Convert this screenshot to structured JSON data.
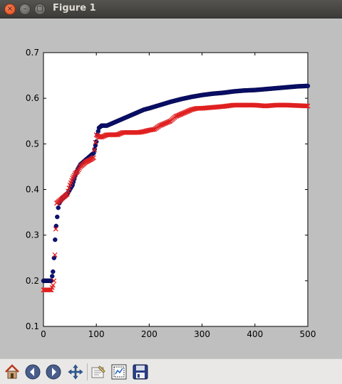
{
  "window": {
    "title": "Figure 1",
    "close_glyph": "×",
    "min_glyph": "–",
    "max_glyph": "□"
  },
  "toolbar": {
    "buttons": [
      {
        "icon": "home-icon",
        "tooltip": "Reset original view"
      },
      {
        "icon": "back-icon",
        "tooltip": "Back to previous view"
      },
      {
        "icon": "forward-icon",
        "tooltip": "Forward to next view"
      },
      {
        "icon": "pan-icon",
        "tooltip": "Pan axes"
      },
      {
        "icon": "zoom-icon",
        "tooltip": "Zoom to rectangle"
      },
      {
        "icon": "subplots-icon",
        "tooltip": "Configure subplots"
      },
      {
        "icon": "save-icon",
        "tooltip": "Save the figure"
      }
    ]
  },
  "chart_data": {
    "type": "scatter",
    "title": "",
    "xlabel": "",
    "ylabel": "",
    "xlim": [
      0,
      500
    ],
    "ylim": [
      0.1,
      0.7
    ],
    "xticks": [
      "0",
      "100",
      "200",
      "300",
      "400",
      "500"
    ],
    "yticks": [
      "0.1",
      "0.2",
      "0.3",
      "0.4",
      "0.5",
      "0.6",
      "0.7"
    ],
    "grid": false,
    "legend": "none",
    "series": [
      {
        "marker": "circle",
        "color": "#0c1370",
        "x": [
          0,
          5,
          10,
          15,
          18,
          20,
          22,
          24,
          26,
          28,
          30,
          35,
          40,
          45,
          50,
          55,
          60,
          65,
          70,
          75,
          80,
          85,
          90,
          95,
          100,
          102,
          105,
          110,
          120,
          130,
          140,
          150,
          160,
          170,
          180,
          190,
          200,
          220,
          240,
          260,
          280,
          300,
          320,
          340,
          360,
          380,
          400,
          420,
          440,
          460,
          480,
          500
        ],
        "y": [
          0.2,
          0.2,
          0.2,
          0.2,
          0.22,
          0.25,
          0.29,
          0.32,
          0.34,
          0.36,
          0.37,
          0.38,
          0.385,
          0.39,
          0.4,
          0.41,
          0.43,
          0.445,
          0.455,
          0.46,
          0.465,
          0.47,
          0.475,
          0.48,
          0.505,
          0.52,
          0.535,
          0.54,
          0.54,
          0.545,
          0.55,
          0.555,
          0.56,
          0.565,
          0.57,
          0.575,
          0.578,
          0.585,
          0.592,
          0.598,
          0.603,
          0.607,
          0.61,
          0.612,
          0.615,
          0.617,
          0.618,
          0.62,
          0.622,
          0.624,
          0.626,
          0.627
        ]
      },
      {
        "marker": "x",
        "color": "#e02020",
        "x": [
          0,
          5,
          10,
          15,
          18,
          20,
          25,
          30,
          35,
          40,
          45,
          50,
          55,
          60,
          65,
          70,
          75,
          80,
          85,
          90,
          95,
          100,
          105,
          110,
          120,
          130,
          140,
          150,
          160,
          170,
          180,
          190,
          200,
          210,
          220,
          230,
          240,
          250,
          260,
          270,
          280,
          290,
          300,
          320,
          340,
          360,
          380,
          400,
          420,
          440,
          460,
          480,
          500
        ],
        "y": [
          0.18,
          0.18,
          0.18,
          0.18,
          0.19,
          0.2,
          0.37,
          0.375,
          0.38,
          0.385,
          0.39,
          0.41,
          0.425,
          0.435,
          0.44,
          0.45,
          0.455,
          0.46,
          0.463,
          0.466,
          0.47,
          0.52,
          0.515,
          0.515,
          0.52,
          0.52,
          0.52,
          0.525,
          0.525,
          0.525,
          0.525,
          0.527,
          0.53,
          0.532,
          0.54,
          0.545,
          0.55,
          0.56,
          0.565,
          0.57,
          0.575,
          0.578,
          0.578,
          0.58,
          0.582,
          0.585,
          0.585,
          0.585,
          0.583,
          0.585,
          0.585,
          0.584,
          0.583
        ]
      }
    ]
  }
}
